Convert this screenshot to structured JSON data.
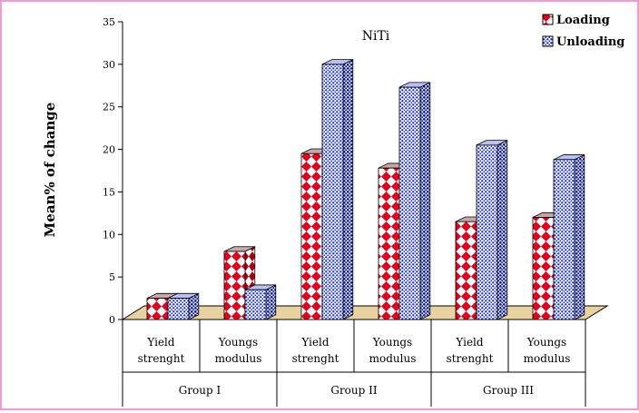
{
  "chart_data": {
    "type": "bar",
    "title": "NiTi",
    "ylabel": "Mean% of change",
    "xlabel": "",
    "ylim": [
      0,
      35
    ],
    "yticks": [
      0,
      5,
      10,
      15,
      20,
      25,
      30,
      35
    ],
    "legend_position": "top-right",
    "grid": false,
    "categories": [
      [
        "Yield",
        "strenght"
      ],
      [
        "Youngs",
        "modulus"
      ],
      [
        "Yield",
        "strenght"
      ],
      [
        "Youngs",
        "modulus"
      ],
      [
        "Yield",
        "strenght"
      ],
      [
        "Youngs",
        "modulus"
      ]
    ],
    "groups": [
      {
        "label": "Group I",
        "categories": 2
      },
      {
        "label": "Group II",
        "categories": 2
      },
      {
        "label": "Group III",
        "categories": 2
      }
    ],
    "series": [
      {
        "name": "Loading",
        "color": "#e3001b",
        "values": [
          2.5,
          8.0,
          19.5,
          17.8,
          11.5,
          12.0
        ]
      },
      {
        "name": "Unloading",
        "color": "#1a2fd6",
        "values": [
          2.5,
          3.5,
          30.0,
          27.3,
          20.5,
          18.8
        ]
      }
    ]
  }
}
